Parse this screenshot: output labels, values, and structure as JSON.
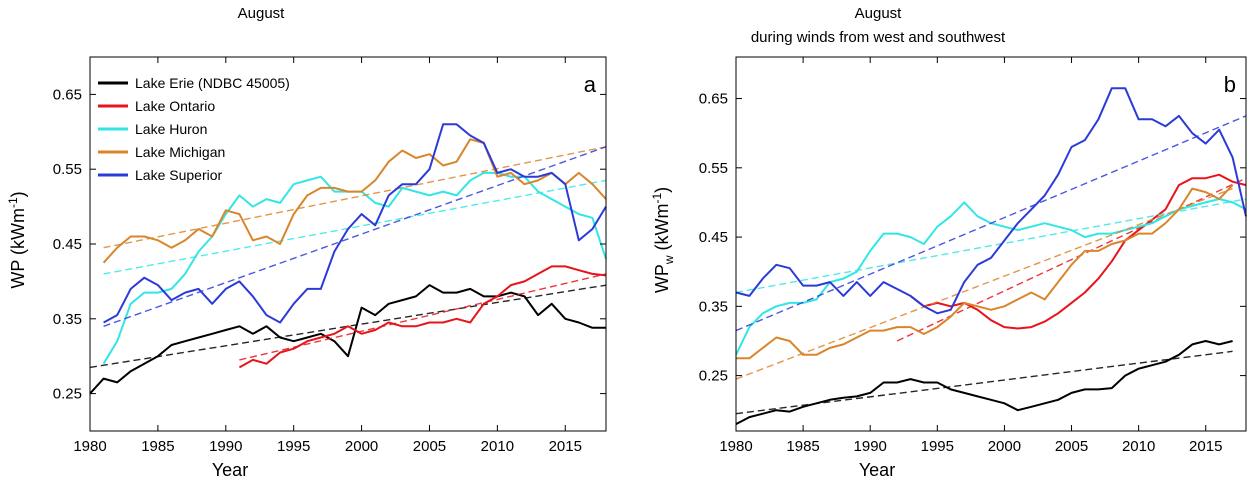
{
  "chart_data": [
    {
      "type": "line",
      "panel_label": "a",
      "title": "August",
      "subtitle": "",
      "xlabel": "Year",
      "ylabel": "WP (kWm",
      "ylabel_sup": "-1",
      "ylabel_close": ")",
      "xlim": [
        1980,
        2018
      ],
      "ylim": [
        0.2,
        0.7
      ],
      "xticks": [
        1980,
        1985,
        1990,
        1995,
        2000,
        2005,
        2010,
        2015
      ],
      "yticks": [
        0.25,
        0.35,
        0.45,
        0.55,
        0.65
      ],
      "xtick_labels": [
        "1980",
        "1985",
        "1990",
        "1995",
        "2000",
        "2005",
        "2010",
        "2015"
      ],
      "ytick_labels": [
        "0.25",
        "0.35",
        "0.45",
        "0.55",
        "0.65"
      ],
      "legend_position": "top-left",
      "grid": false,
      "series": [
        {
          "name": "Lake Erie (NDBC 45005)",
          "color": "#000000",
          "x": [
            1980,
            1981,
            1982,
            1983,
            1984,
            1985,
            1986,
            1987,
            1988,
            1989,
            1990,
            1991,
            1992,
            1993,
            1994,
            1995,
            1996,
            1997,
            1998,
            1999,
            2000,
            2001,
            2002,
            2003,
            2004,
            2005,
            2006,
            2007,
            2008,
            2009,
            2010,
            2011,
            2012,
            2013,
            2014,
            2015,
            2016,
            2017,
            2018
          ],
          "y": [
            0.25,
            0.27,
            0.265,
            0.28,
            0.29,
            0.3,
            0.315,
            0.32,
            0.325,
            0.33,
            0.335,
            0.34,
            0.33,
            0.34,
            0.325,
            0.32,
            0.325,
            0.33,
            0.32,
            0.3,
            0.365,
            0.355,
            0.37,
            0.375,
            0.38,
            0.395,
            0.385,
            0.385,
            0.39,
            0.38,
            0.38,
            0.385,
            0.38,
            0.355,
            0.37,
            0.35,
            0.345,
            0.338,
            0.338
          ],
          "trend": [
            0.285,
            0.395
          ]
        },
        {
          "name": "Lake Ontario",
          "color": "#e8141b",
          "x": [
            1991,
            1992,
            1993,
            1994,
            1995,
            1996,
            1997,
            1998,
            1999,
            2000,
            2001,
            2002,
            2003,
            2004,
            2005,
            2006,
            2007,
            2008,
            2009,
            2010,
            2011,
            2012,
            2013,
            2014,
            2015,
            2016,
            2017,
            2018
          ],
          "y": [
            0.285,
            0.295,
            0.29,
            0.305,
            0.31,
            0.32,
            0.325,
            0.33,
            0.34,
            0.33,
            0.335,
            0.345,
            0.34,
            0.34,
            0.345,
            0.345,
            0.35,
            0.345,
            0.37,
            0.38,
            0.395,
            0.4,
            0.41,
            0.42,
            0.42,
            0.415,
            0.41,
            0.408
          ],
          "trend": [
            0.295,
            0.41
          ]
        },
        {
          "name": "Lake Huron",
          "color": "#33e6e6",
          "x": [
            1981,
            1982,
            1983,
            1984,
            1985,
            1986,
            1987,
            1988,
            1989,
            1990,
            1991,
            1992,
            1993,
            1994,
            1995,
            1996,
            1997,
            1998,
            1999,
            2000,
            2001,
            2002,
            2003,
            2004,
            2005,
            2006,
            2007,
            2008,
            2009,
            2010,
            2011,
            2012,
            2013,
            2014,
            2015,
            2016,
            2017,
            2018
          ],
          "y": [
            0.29,
            0.32,
            0.37,
            0.385,
            0.385,
            0.39,
            0.41,
            0.44,
            0.46,
            0.49,
            0.515,
            0.5,
            0.51,
            0.505,
            0.53,
            0.535,
            0.54,
            0.52,
            0.52,
            0.52,
            0.505,
            0.5,
            0.525,
            0.52,
            0.515,
            0.52,
            0.515,
            0.535,
            0.545,
            0.545,
            0.54,
            0.54,
            0.52,
            0.51,
            0.5,
            0.49,
            0.485,
            0.43
          ],
          "trend": [
            0.41,
            0.535
          ]
        },
        {
          "name": "Lake Michigan",
          "color": "#d9862b",
          "x": [
            1981,
            1982,
            1983,
            1984,
            1985,
            1986,
            1987,
            1988,
            1989,
            1990,
            1991,
            1992,
            1993,
            1994,
            1995,
            1996,
            1997,
            1998,
            1999,
            2000,
            2001,
            2002,
            2003,
            2004,
            2005,
            2006,
            2007,
            2008,
            2009,
            2010,
            2011,
            2012,
            2013,
            2014,
            2015,
            2016,
            2017,
            2018
          ],
          "y": [
            0.425,
            0.445,
            0.46,
            0.46,
            0.455,
            0.445,
            0.455,
            0.47,
            0.46,
            0.495,
            0.49,
            0.455,
            0.46,
            0.45,
            0.49,
            0.515,
            0.525,
            0.525,
            0.52,
            0.52,
            0.535,
            0.56,
            0.575,
            0.565,
            0.57,
            0.555,
            0.56,
            0.59,
            0.585,
            0.54,
            0.545,
            0.53,
            0.535,
            0.545,
            0.53,
            0.545,
            0.53,
            0.51
          ],
          "trend": [
            0.445,
            0.58
          ]
        },
        {
          "name": "Lake Superior",
          "color": "#2b3bd9",
          "x": [
            1981,
            1982,
            1983,
            1984,
            1985,
            1986,
            1987,
            1988,
            1989,
            1990,
            1991,
            1992,
            1993,
            1994,
            1995,
            1996,
            1997,
            1998,
            1999,
            2000,
            2001,
            2002,
            2003,
            2004,
            2005,
            2006,
            2007,
            2008,
            2009,
            2010,
            2011,
            2012,
            2013,
            2014,
            2015,
            2016,
            2017,
            2018
          ],
          "y": [
            0.345,
            0.355,
            0.39,
            0.405,
            0.395,
            0.375,
            0.385,
            0.39,
            0.37,
            0.39,
            0.4,
            0.38,
            0.355,
            0.345,
            0.37,
            0.39,
            0.39,
            0.44,
            0.47,
            0.49,
            0.475,
            0.515,
            0.53,
            0.53,
            0.55,
            0.61,
            0.61,
            0.595,
            0.585,
            0.545,
            0.55,
            0.54,
            0.54,
            0.545,
            0.53,
            0.455,
            0.47,
            0.5
          ],
          "trend": [
            0.34,
            0.58
          ]
        }
      ]
    },
    {
      "type": "line",
      "panel_label": "b",
      "title": "August",
      "subtitle": "during winds from west and southwest",
      "xlabel": "Year",
      "ylabel": "WP",
      "ylabel_sub": "w",
      "ylabel_tail": " (kWm",
      "ylabel_sup": "-1",
      "ylabel_close": ")",
      "xlim": [
        1980,
        2018
      ],
      "ylim": [
        0.17,
        0.71
      ],
      "xticks": [
        1980,
        1985,
        1990,
        1995,
        2000,
        2005,
        2010,
        2015
      ],
      "yticks": [
        0.25,
        0.35,
        0.45,
        0.55,
        0.65
      ],
      "xtick_labels": [
        "1980",
        "1985",
        "1990",
        "1995",
        "2000",
        "2005",
        "2010",
        "2015"
      ],
      "ytick_labels": [
        "0.25",
        "0.35",
        "0.45",
        "0.55",
        "0.65"
      ],
      "legend_position": "none",
      "grid": false,
      "series": [
        {
          "color": "#000000",
          "x": [
            1980,
            1981,
            1982,
            1983,
            1984,
            1985,
            1986,
            1987,
            1988,
            1989,
            1990,
            1991,
            1992,
            1993,
            1994,
            1995,
            1996,
            1997,
            1998,
            1999,
            2000,
            2001,
            2002,
            2003,
            2004,
            2005,
            2006,
            2007,
            2008,
            2009,
            2010,
            2011,
            2012,
            2013,
            2014,
            2015,
            2016,
            2017
          ],
          "y": [
            0.18,
            0.19,
            0.195,
            0.2,
            0.198,
            0.205,
            0.21,
            0.215,
            0.218,
            0.22,
            0.225,
            0.24,
            0.24,
            0.245,
            0.24,
            0.24,
            0.23,
            0.225,
            0.22,
            0.215,
            0.21,
            0.2,
            0.205,
            0.21,
            0.215,
            0.225,
            0.23,
            0.23,
            0.232,
            0.25,
            0.26,
            0.265,
            0.27,
            0.28,
            0.295,
            0.3,
            0.295,
            0.3
          ],
          "trend": [
            0.195,
            0.285
          ]
        },
        {
          "color": "#e8141b",
          "x": [
            1993,
            1994,
            1995,
            1996,
            1997,
            1998,
            1999,
            2000,
            2001,
            2002,
            2003,
            2004,
            2005,
            2006,
            2007,
            2008,
            2009,
            2010,
            2011,
            2012,
            2013,
            2014,
            2015,
            2016,
            2017,
            2018
          ],
          "y": [
            0.365,
            0.35,
            0.355,
            0.35,
            0.355,
            0.345,
            0.33,
            0.32,
            0.318,
            0.32,
            0.328,
            0.34,
            0.355,
            0.37,
            0.39,
            0.415,
            0.445,
            0.46,
            0.475,
            0.49,
            0.525,
            0.535,
            0.535,
            0.54,
            0.53,
            0.525
          ],
          "trend_x": [
            1992,
            2018
          ],
          "trend": [
            0.3,
            0.535
          ]
        },
        {
          "color": "#33e6e6",
          "x": [
            1980,
            1981,
            1982,
            1983,
            1984,
            1985,
            1986,
            1987,
            1988,
            1989,
            1990,
            1991,
            1992,
            1993,
            1994,
            1995,
            1996,
            1997,
            1998,
            1999,
            2000,
            2001,
            2002,
            2003,
            2004,
            2005,
            2006,
            2007,
            2008,
            2009,
            2010,
            2011,
            2012,
            2013,
            2014,
            2015,
            2016,
            2017,
            2018
          ],
          "y": [
            0.28,
            0.32,
            0.34,
            0.35,
            0.355,
            0.355,
            0.36,
            0.385,
            0.39,
            0.4,
            0.43,
            0.455,
            0.455,
            0.45,
            0.44,
            0.465,
            0.48,
            0.5,
            0.48,
            0.47,
            0.465,
            0.46,
            0.465,
            0.47,
            0.465,
            0.46,
            0.45,
            0.455,
            0.455,
            0.46,
            0.465,
            0.47,
            0.48,
            0.49,
            0.495,
            0.5,
            0.505,
            0.5,
            0.49
          ],
          "trend": [
            0.37,
            0.505
          ]
        },
        {
          "color": "#d9862b",
          "x": [
            1980,
            1981,
            1982,
            1983,
            1984,
            1985,
            1986,
            1987,
            1988,
            1989,
            1990,
            1991,
            1992,
            1993,
            1994,
            1995,
            1996,
            1997,
            1998,
            1999,
            2000,
            2001,
            2002,
            2003,
            2004,
            2005,
            2006,
            2007,
            2008,
            2009,
            2010,
            2011,
            2012,
            2013,
            2014,
            2015,
            2016,
            2017
          ],
          "y": [
            0.275,
            0.275,
            0.29,
            0.305,
            0.3,
            0.28,
            0.28,
            0.29,
            0.295,
            0.305,
            0.315,
            0.315,
            0.32,
            0.32,
            0.31,
            0.32,
            0.335,
            0.355,
            0.35,
            0.345,
            0.35,
            0.36,
            0.37,
            0.36,
            0.385,
            0.41,
            0.43,
            0.43,
            0.44,
            0.445,
            0.455,
            0.455,
            0.47,
            0.49,
            0.52,
            0.515,
            0.505,
            0.525
          ],
          "trend": [
            0.245,
            0.52
          ]
        },
        {
          "color": "#2b3bd9",
          "x": [
            1980,
            1981,
            1982,
            1983,
            1984,
            1985,
            1986,
            1987,
            1988,
            1989,
            1990,
            1991,
            1992,
            1993,
            1994,
            1995,
            1996,
            1997,
            1998,
            1999,
            2000,
            2001,
            2002,
            2003,
            2004,
            2005,
            2006,
            2007,
            2008,
            2009,
            2010,
            2011,
            2012,
            2013,
            2014,
            2015,
            2016,
            2017,
            2018
          ],
          "y": [
            0.37,
            0.365,
            0.39,
            0.41,
            0.405,
            0.38,
            0.38,
            0.385,
            0.365,
            0.385,
            0.365,
            0.385,
            0.375,
            0.365,
            0.35,
            0.34,
            0.345,
            0.385,
            0.41,
            0.42,
            0.445,
            0.47,
            0.49,
            0.51,
            0.54,
            0.58,
            0.59,
            0.62,
            0.665,
            0.665,
            0.62,
            0.62,
            0.61,
            0.625,
            0.6,
            0.585,
            0.605,
            0.565,
            0.48
          ],
          "trend": [
            0.315,
            0.625
          ]
        }
      ]
    }
  ]
}
